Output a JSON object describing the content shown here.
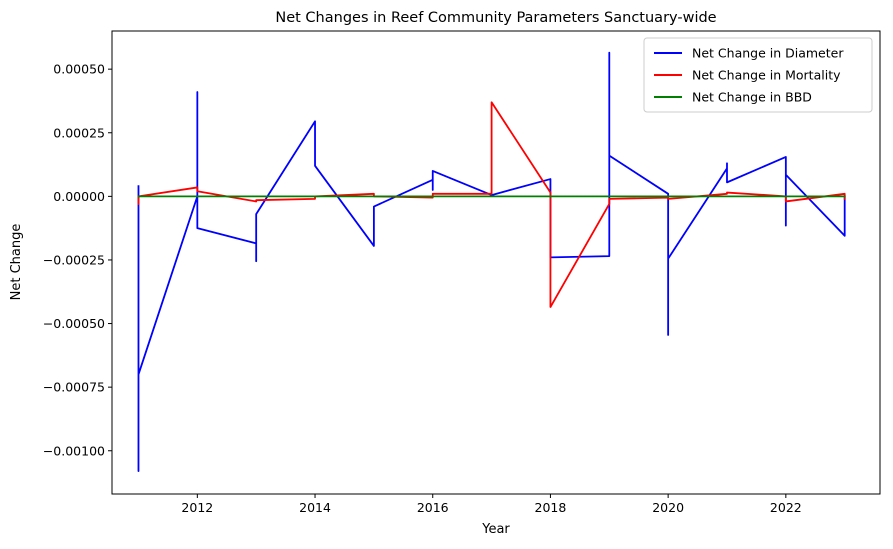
{
  "chart_data": {
    "type": "line",
    "title": "Net Changes in Reef Community Parameters Sanctuary-wide",
    "xlabel": "Year",
    "ylabel": "Net Change",
    "xlim": [
      2010.55,
      2023.6
    ],
    "ylim": [
      -0.00117,
      0.00065
    ],
    "xticks": [
      2012,
      2014,
      2016,
      2018,
      2020,
      2022
    ],
    "xtick_labels": [
      "2012",
      "2014",
      "2016",
      "2018",
      "2020",
      "2022"
    ],
    "yticks": [
      -0.001,
      -0.00075,
      -0.0005,
      -0.00025,
      0.0,
      0.00025,
      0.0005
    ],
    "ytick_labels": [
      "−0.00100",
      "−0.00075",
      "−0.00050",
      "−0.00025",
      "0.00000",
      "0.00025",
      "0.00050"
    ],
    "grid": false,
    "legend_position": "top-right",
    "series": [
      {
        "name": "Net Change in Diameter",
        "color": "#0000ff",
        "points": [
          [
            2011,
            4e-05
          ],
          [
            2011,
            -0.00108
          ],
          [
            2011,
            -0.0007
          ],
          [
            2012,
            0.0
          ],
          [
            2012,
            0.00041
          ],
          [
            2012,
            -0.000125
          ],
          [
            2013,
            -0.000185
          ],
          [
            2013,
            -0.000255
          ],
          [
            2013,
            -7e-05
          ],
          [
            2014,
            0.000295
          ],
          [
            2014,
            0.00012
          ],
          [
            2015,
            -0.000195
          ],
          [
            2015,
            -4e-05
          ],
          [
            2016,
            6.5e-05
          ],
          [
            2016,
            2.5e-05
          ],
          [
            2016,
            0.0001
          ],
          [
            2017,
            5e-06
          ],
          [
            2018,
            6.8e-05
          ],
          [
            2018,
            -0.00024
          ],
          [
            2019,
            -0.000235
          ],
          [
            2019,
            0.000565
          ],
          [
            2019,
            0.00016
          ],
          [
            2020,
            1e-05
          ],
          [
            2020,
            -0.000545
          ],
          [
            2020,
            -0.000245
          ],
          [
            2021,
            0.00011
          ],
          [
            2021,
            0.00013
          ],
          [
            2021,
            5.5e-05
          ],
          [
            2022,
            0.000155
          ],
          [
            2022,
            -0.000115
          ],
          [
            2022,
            8.5e-05
          ],
          [
            2023,
            -0.000155
          ],
          [
            2023,
            -3e-05
          ],
          [
            2023,
            0.0
          ]
        ]
      },
      {
        "name": "Net Change in Mortality",
        "color": "#ff0000",
        "points": [
          [
            2011,
            -3e-05
          ],
          [
            2011,
            0.0
          ],
          [
            2012,
            3.5e-05
          ],
          [
            2012,
            2e-05
          ],
          [
            2013,
            -2e-05
          ],
          [
            2013,
            -1.5e-05
          ],
          [
            2014,
            -1e-05
          ],
          [
            2014,
            0.0
          ],
          [
            2015,
            1e-05
          ],
          [
            2015,
            0.0
          ],
          [
            2016,
            -5e-06
          ],
          [
            2016,
            1e-05
          ],
          [
            2017,
            1e-05
          ],
          [
            2017,
            0.00037
          ],
          [
            2018,
            1.5e-05
          ],
          [
            2018,
            -0.000435
          ],
          [
            2019,
            -3e-05
          ],
          [
            2019,
            -1e-05
          ],
          [
            2020,
            -5e-06
          ],
          [
            2020,
            -1e-05
          ],
          [
            2021,
            1e-05
          ],
          [
            2021,
            1.5e-05
          ],
          [
            2022,
            0.0
          ],
          [
            2022,
            -2e-05
          ],
          [
            2023,
            1e-05
          ],
          [
            2023,
            -1e-05
          ]
        ]
      },
      {
        "name": "Net Change in BBD",
        "color": "#008000",
        "points": [
          [
            2011,
            0.0
          ],
          [
            2023,
            0.0
          ]
        ]
      }
    ]
  }
}
